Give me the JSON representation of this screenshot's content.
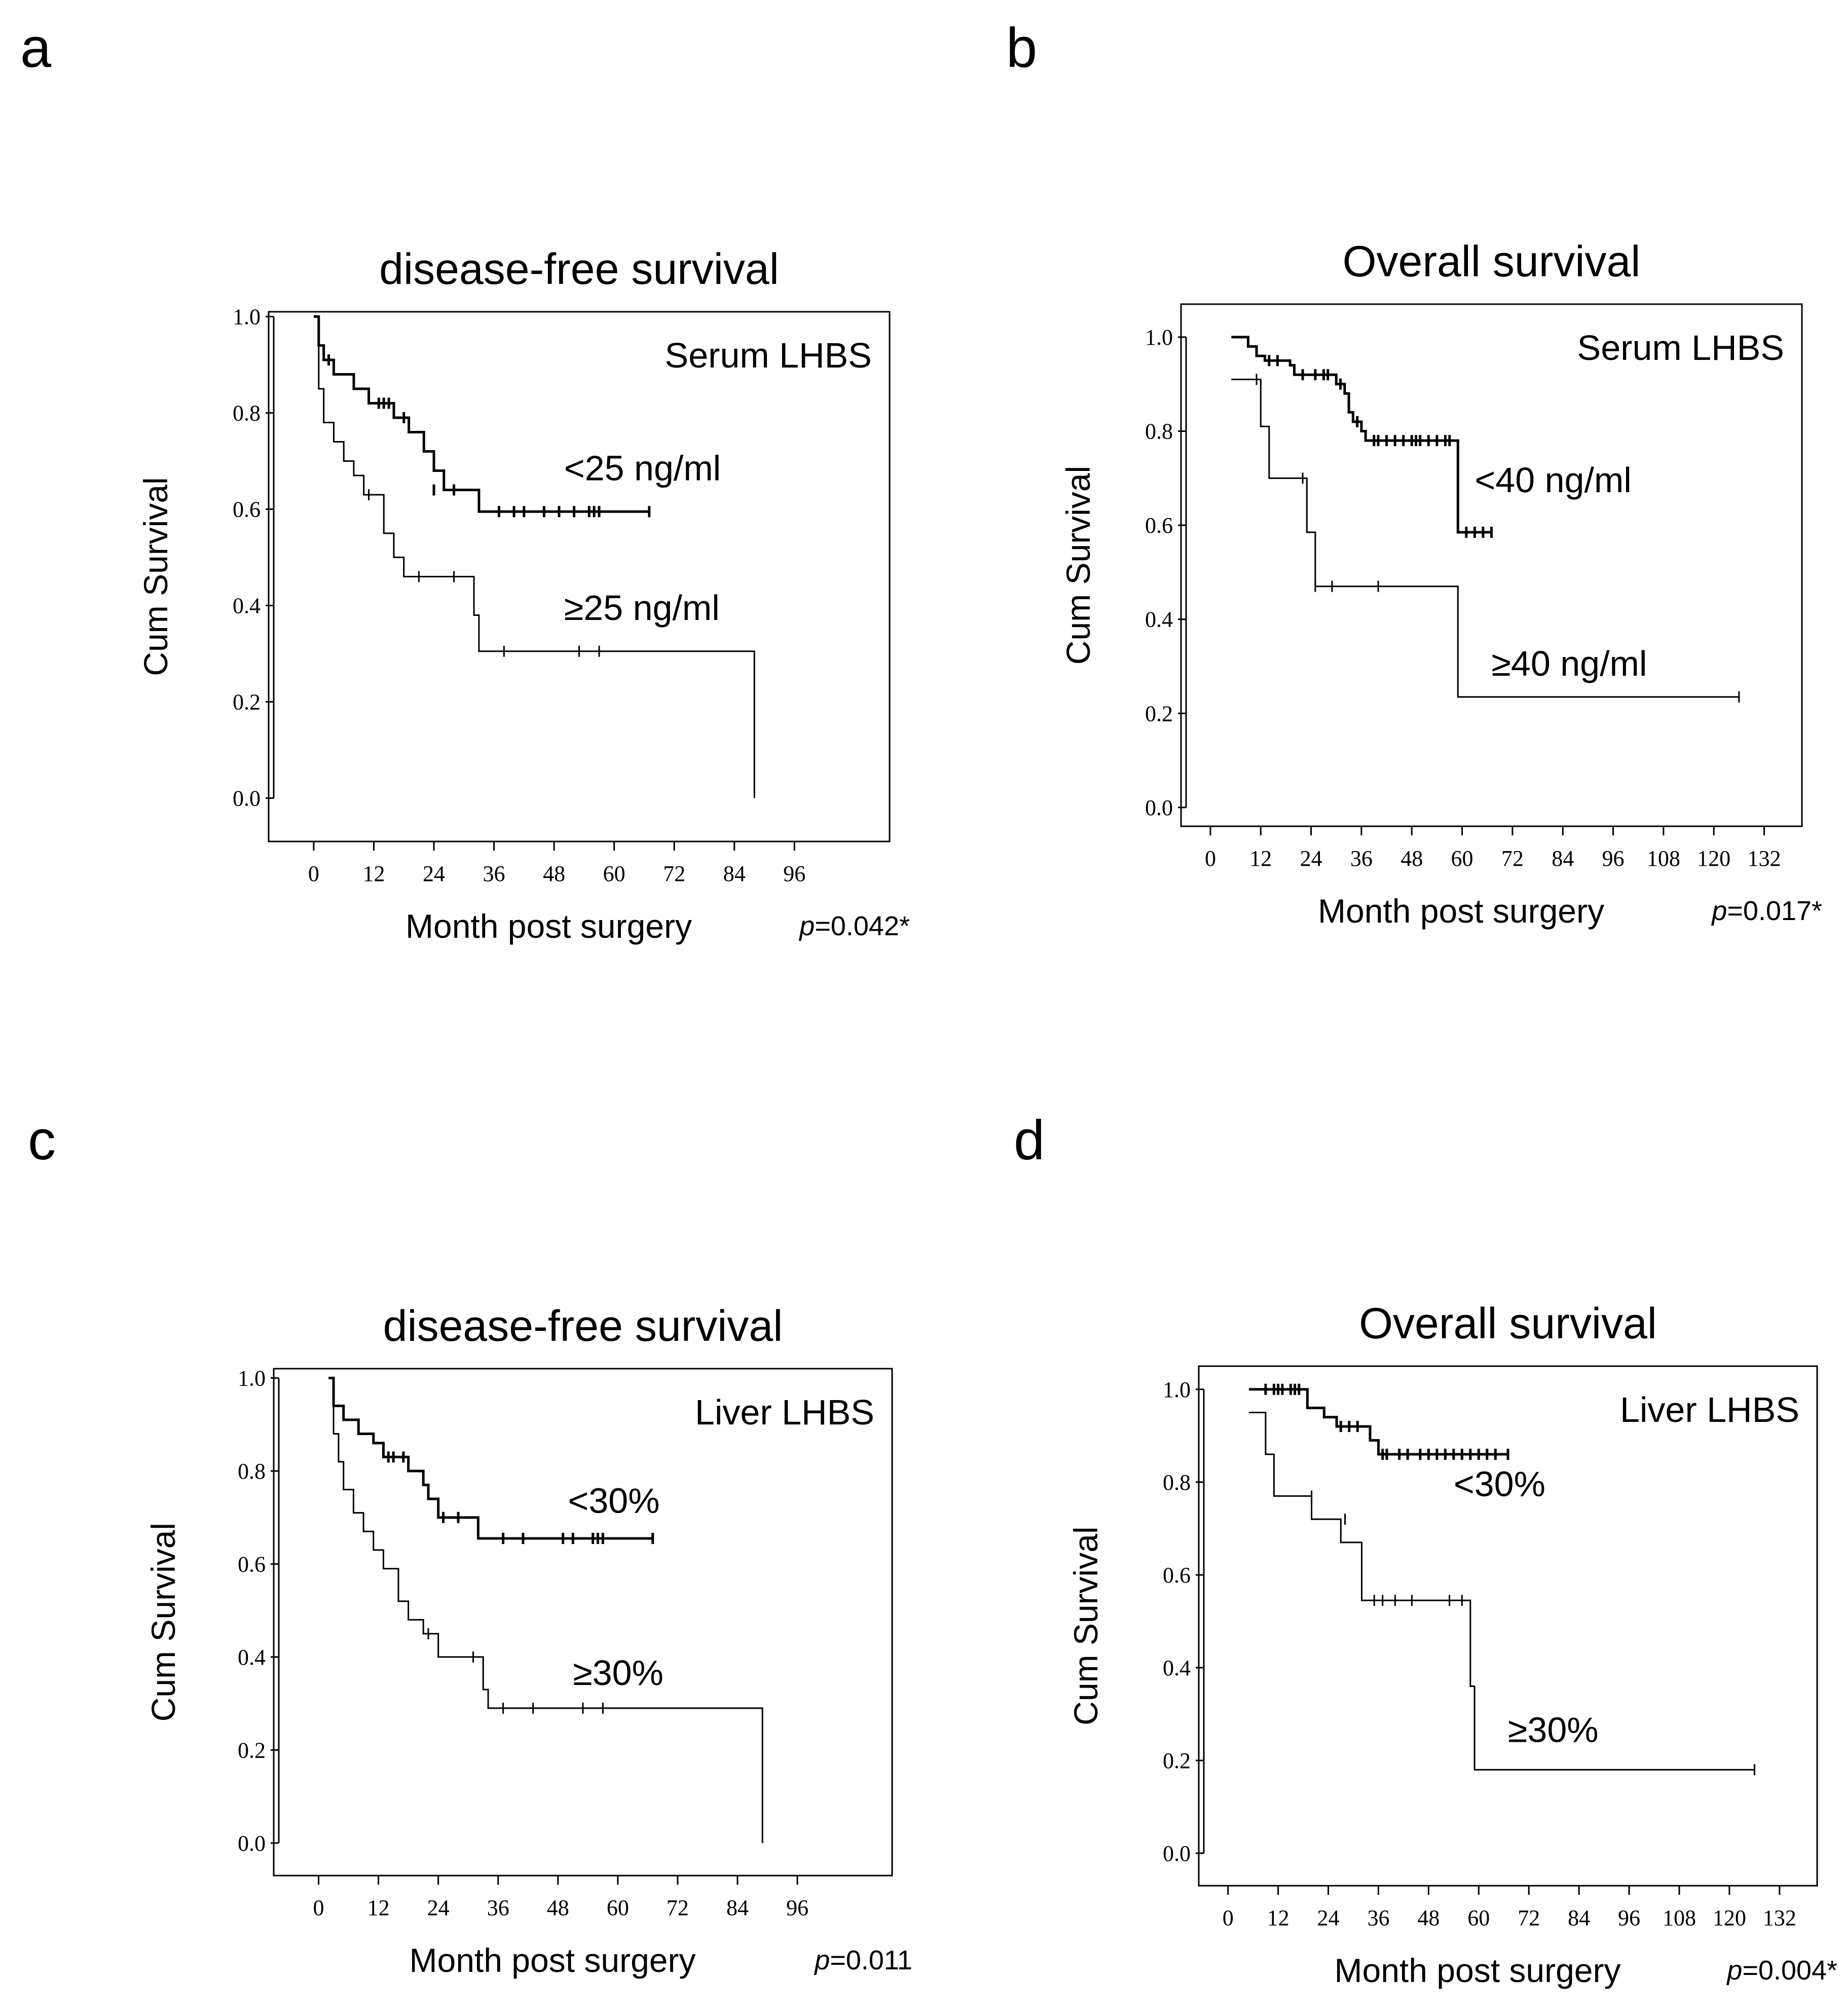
{
  "panel_letters": [
    "a",
    "b",
    "c",
    "d"
  ],
  "chart_data": [
    {
      "panel": "a",
      "type": "line",
      "title": "disease-free survival",
      "inset_label": "Serum LHBS",
      "xlabel": "Month post surgery",
      "ylabel": "Cum Survival",
      "xlim": [
        -9,
        115
      ],
      "ylim": [
        -0.09,
        1.01
      ],
      "xticks": [
        0,
        12,
        24,
        36,
        48,
        60,
        72,
        84,
        96
      ],
      "xtick_labels": [
        "0",
        "12",
        "24",
        "36",
        "48",
        "60",
        "72",
        "84",
        "96"
      ],
      "yticks": [
        0.0,
        0.2,
        0.4,
        0.6,
        0.8,
        1.0
      ],
      "ytick_labels": [
        "0.0",
        "0.2",
        "0.4",
        "0.6",
        "0.8",
        "1.0"
      ],
      "p_prefix": "p",
      "p_value": "=0.042*",
      "series": [
        {
          "name": "<25 ng/ml",
          "label": "<25 ng/ml",
          "label_at": [
            50,
            0.66
          ],
          "thick": true,
          "steps": [
            [
              0,
              1.0
            ],
            [
              1,
              0.94
            ],
            [
              2,
              0.91
            ],
            [
              4,
              0.88
            ],
            [
              8,
              0.85
            ],
            [
              11,
              0.82
            ],
            [
              16,
              0.79
            ],
            [
              19,
              0.76
            ],
            [
              22,
              0.72
            ],
            [
              24,
              0.68
            ],
            [
              26,
              0.64
            ],
            [
              33,
              0.595
            ],
            [
              67,
              0.595
            ]
          ],
          "censored": [
            [
              3,
              0.91
            ],
            [
              13,
              0.82
            ],
            [
              14,
              0.82
            ],
            [
              15,
              0.82
            ],
            [
              18,
              0.79
            ],
            [
              24,
              0.64
            ],
            [
              28,
              0.64
            ],
            [
              37,
              0.595
            ],
            [
              40,
              0.595
            ],
            [
              42,
              0.595
            ],
            [
              46,
              0.595
            ],
            [
              49,
              0.595
            ],
            [
              52,
              0.595
            ],
            [
              55,
              0.595
            ],
            [
              56,
              0.595
            ],
            [
              57,
              0.595
            ],
            [
              67,
              0.595
            ]
          ]
        },
        {
          "name": "≥25 ng/ml",
          "label": "≥25 ng/ml",
          "label_at": [
            50,
            0.37
          ],
          "thick": false,
          "steps": [
            [
              0,
              1.0
            ],
            [
              1,
              0.85
            ],
            [
              2,
              0.78
            ],
            [
              4,
              0.74
            ],
            [
              6,
              0.7
            ],
            [
              8,
              0.67
            ],
            [
              10,
              0.63
            ],
            [
              14,
              0.55
            ],
            [
              16,
              0.5
            ],
            [
              18,
              0.46
            ],
            [
              32,
              0.38
            ],
            [
              33,
              0.305
            ],
            [
              88,
              0.305
            ],
            [
              88,
              0.0
            ]
          ],
          "censored": [
            [
              11,
              0.63
            ],
            [
              21,
              0.46
            ],
            [
              28,
              0.46
            ],
            [
              38,
              0.305
            ],
            [
              53,
              0.305
            ],
            [
              57,
              0.305
            ]
          ]
        }
      ]
    },
    {
      "panel": "b",
      "type": "line",
      "title": "Overall survival",
      "inset_label": "Serum LHBS",
      "xlabel": "Month post surgery",
      "ylabel": "Cum Survival",
      "xlim": [
        -7,
        141
      ],
      "ylim": [
        -0.04,
        1.07
      ],
      "xticks": [
        0,
        12,
        24,
        36,
        48,
        60,
        72,
        84,
        96,
        108,
        120,
        132
      ],
      "xtick_labels": [
        "0",
        "12",
        "24",
        "36",
        "48",
        "60",
        "72",
        "84",
        "96",
        "108",
        "120",
        "132"
      ],
      "yticks": [
        0.0,
        0.2,
        0.4,
        0.6,
        0.8,
        1.0
      ],
      "ytick_labels": [
        "0.0",
        "0.2",
        "0.4",
        "0.6",
        "0.8",
        "1.0"
      ],
      "p_prefix": "p",
      "p_value": "=0.017*",
      "series": [
        {
          "name": "<40 ng/ml",
          "label": "<40 ng/ml",
          "label_at": [
            63,
            0.67
          ],
          "thick": true,
          "steps": [
            [
              5,
              1.0
            ],
            [
              9,
              0.98
            ],
            [
              11,
              0.96
            ],
            [
              13,
              0.95
            ],
            [
              19,
              0.94
            ],
            [
              20,
              0.92
            ],
            [
              30,
              0.9
            ],
            [
              32,
              0.88
            ],
            [
              33,
              0.84
            ],
            [
              34,
              0.82
            ],
            [
              36,
              0.8
            ],
            [
              37,
              0.78
            ],
            [
              58,
              0.78
            ],
            [
              59,
              0.585
            ],
            [
              67,
              0.585
            ]
          ],
          "censored": [
            [
              14,
              0.95
            ],
            [
              16,
              0.95
            ],
            [
              22,
              0.92
            ],
            [
              25,
              0.92
            ],
            [
              27,
              0.92
            ],
            [
              28,
              0.92
            ],
            [
              31,
              0.9
            ],
            [
              35,
              0.82
            ],
            [
              39,
              0.78
            ],
            [
              40,
              0.78
            ],
            [
              42,
              0.78
            ],
            [
              44,
              0.78
            ],
            [
              46,
              0.78
            ],
            [
              48,
              0.78
            ],
            [
              49,
              0.78
            ],
            [
              50,
              0.78
            ],
            [
              52,
              0.78
            ],
            [
              54,
              0.78
            ],
            [
              56,
              0.78
            ],
            [
              57,
              0.78
            ],
            [
              61,
              0.585
            ],
            [
              63,
              0.585
            ],
            [
              65,
              0.585
            ],
            [
              67,
              0.585
            ]
          ]
        },
        {
          "name": "≥40 ng/ml",
          "label": "≥40 ng/ml",
          "label_at": [
            67,
            0.28
          ],
          "thick": false,
          "steps": [
            [
              5,
              0.91
            ],
            [
              12,
              0.81
            ],
            [
              14,
              0.7
            ],
            [
              23,
              0.585
            ],
            [
              25,
              0.47
            ],
            [
              59,
              0.235
            ],
            [
              126,
              0.235
            ]
          ],
          "censored": [
            [
              11,
              0.91
            ],
            [
              22,
              0.7
            ],
            [
              25,
              0.47
            ],
            [
              29,
              0.47
            ],
            [
              40,
              0.47
            ],
            [
              126,
              0.235
            ]
          ]
        }
      ]
    },
    {
      "panel": "c",
      "type": "line",
      "title": "disease-free survival",
      "inset_label": "Liver LHBS",
      "xlabel": "Month post surgery",
      "ylabel": "Cum Survival",
      "xlim": [
        -9,
        115
      ],
      "ylim": [
        -0.07,
        1.02
      ],
      "xticks": [
        0,
        12,
        24,
        36,
        48,
        60,
        72,
        84,
        96
      ],
      "xtick_labels": [
        "0",
        "12",
        "24",
        "36",
        "48",
        "60",
        "72",
        "84",
        "96"
      ],
      "yticks": [
        0.0,
        0.2,
        0.4,
        0.6,
        0.8,
        1.0
      ],
      "ytick_labels": [
        "0.0",
        "0.2",
        "0.4",
        "0.6",
        "0.8",
        "1.0"
      ],
      "p_prefix": "p",
      "p_value": "=0.011",
      "series": [
        {
          "name": "<30%",
          "label": "<30%",
          "label_at": [
            50,
            0.71
          ],
          "thick": true,
          "steps": [
            [
              2,
              1.0
            ],
            [
              3,
              0.94
            ],
            [
              5,
              0.91
            ],
            [
              8,
              0.88
            ],
            [
              11,
              0.86
            ],
            [
              13,
              0.83
            ],
            [
              18,
              0.8
            ],
            [
              21,
              0.77
            ],
            [
              22,
              0.74
            ],
            [
              24,
              0.7
            ],
            [
              32,
              0.655
            ],
            [
              67,
              0.655
            ]
          ],
          "censored": [
            [
              14,
              0.83
            ],
            [
              15,
              0.83
            ],
            [
              17,
              0.83
            ],
            [
              25,
              0.7
            ],
            [
              28,
              0.7
            ],
            [
              37,
              0.655
            ],
            [
              41,
              0.655
            ],
            [
              49,
              0.655
            ],
            [
              51,
              0.655
            ],
            [
              55,
              0.655
            ],
            [
              56,
              0.655
            ],
            [
              57,
              0.655
            ],
            [
              67,
              0.655
            ]
          ]
        },
        {
          "name": "≥30%",
          "label": "≥30%",
          "label_at": [
            51,
            0.34
          ],
          "thick": false,
          "steps": [
            [
              2,
              1.0
            ],
            [
              3,
              0.88
            ],
            [
              4,
              0.82
            ],
            [
              5,
              0.76
            ],
            [
              7,
              0.71
            ],
            [
              9,
              0.67
            ],
            [
              11,
              0.63
            ],
            [
              13,
              0.59
            ],
            [
              16,
              0.52
            ],
            [
              18,
              0.48
            ],
            [
              21,
              0.45
            ],
            [
              24,
              0.4
            ],
            [
              33,
              0.33
            ],
            [
              34,
              0.29
            ],
            [
              89,
              0.29
            ],
            [
              89,
              0.0
            ]
          ],
          "censored": [
            [
              22,
              0.45
            ],
            [
              31,
              0.4
            ],
            [
              37,
              0.29
            ],
            [
              43,
              0.29
            ],
            [
              53,
              0.29
            ],
            [
              57,
              0.29
            ]
          ]
        }
      ]
    },
    {
      "panel": "d",
      "type": "line",
      "title": "Overall survival",
      "inset_label": "Liver LHBS",
      "xlabel": "Month post surgery",
      "ylabel": "Cum Survival",
      "xlim": [
        -7,
        141
      ],
      "ylim": [
        -0.07,
        1.05
      ],
      "xticks": [
        0,
        12,
        24,
        36,
        48,
        60,
        72,
        84,
        96,
        108,
        120,
        132
      ],
      "xtick_labels": [
        "0",
        "12",
        "24",
        "36",
        "48",
        "60",
        "72",
        "84",
        "96",
        "108",
        "120",
        "132"
      ],
      "yticks": [
        0.0,
        0.2,
        0.4,
        0.6,
        0.8,
        1.0
      ],
      "ytick_labels": [
        "0.0",
        "0.2",
        "0.4",
        "0.6",
        "0.8",
        "1.0"
      ],
      "p_prefix": "p",
      "p_value": "=0.004*",
      "series": [
        {
          "name": "<30%",
          "label": "<30%",
          "label_at": [
            54,
            0.77
          ],
          "thick": true,
          "steps": [
            [
              5,
              1.0
            ],
            [
              18,
              1.0
            ],
            [
              19,
              0.96
            ],
            [
              23,
              0.94
            ],
            [
              26,
              0.92
            ],
            [
              34,
              0.89
            ],
            [
              36,
              0.86
            ],
            [
              67,
              0.86
            ]
          ],
          "censored": [
            [
              9,
              1.0
            ],
            [
              11,
              1.0
            ],
            [
              12,
              1.0
            ],
            [
              13,
              1.0
            ],
            [
              15,
              1.0
            ],
            [
              16,
              1.0
            ],
            [
              17,
              1.0
            ],
            [
              27,
              0.92
            ],
            [
              29,
              0.92
            ],
            [
              31,
              0.92
            ],
            [
              37,
              0.86
            ],
            [
              38,
              0.86
            ],
            [
              41,
              0.86
            ],
            [
              43,
              0.86
            ],
            [
              46,
              0.86
            ],
            [
              48,
              0.86
            ],
            [
              50,
              0.86
            ],
            [
              52,
              0.86
            ],
            [
              54,
              0.86
            ],
            [
              56,
              0.86
            ],
            [
              58,
              0.86
            ],
            [
              60,
              0.86
            ],
            [
              62,
              0.86
            ],
            [
              64,
              0.86
            ],
            [
              67,
              0.86
            ]
          ]
        },
        {
          "name": "≥30%",
          "label": "≥30%",
          "label_at": [
            67,
            0.24
          ],
          "thick": false,
          "steps": [
            [
              5,
              0.95
            ],
            [
              9,
              0.86
            ],
            [
              11,
              0.77
            ],
            [
              18,
              0.77
            ],
            [
              20,
              0.72
            ],
            [
              27,
              0.67
            ],
            [
              32,
              0.545
            ],
            [
              57,
              0.545
            ],
            [
              58,
              0.36
            ],
            [
              59,
              0.18
            ],
            [
              126,
              0.18
            ]
          ],
          "censored": [
            [
              20,
              0.77
            ],
            [
              28,
              0.72
            ],
            [
              35,
              0.545
            ],
            [
              37,
              0.545
            ],
            [
              40,
              0.545
            ],
            [
              44,
              0.545
            ],
            [
              53,
              0.545
            ],
            [
              56,
              0.545
            ],
            [
              126,
              0.18
            ]
          ]
        }
      ]
    }
  ]
}
